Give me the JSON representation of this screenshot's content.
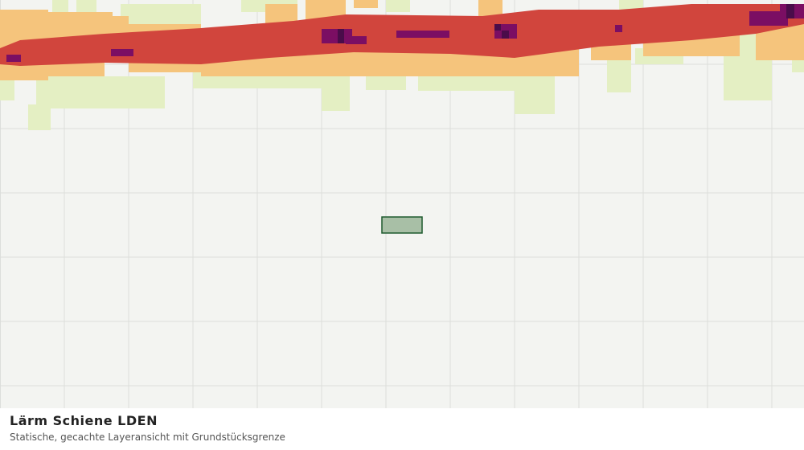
{
  "header": {
    "title": "Lärm Schiene LDEN",
    "subtitle": "Statische, gecachte Layeransicht mit Grundstücksgrenze"
  }
}
